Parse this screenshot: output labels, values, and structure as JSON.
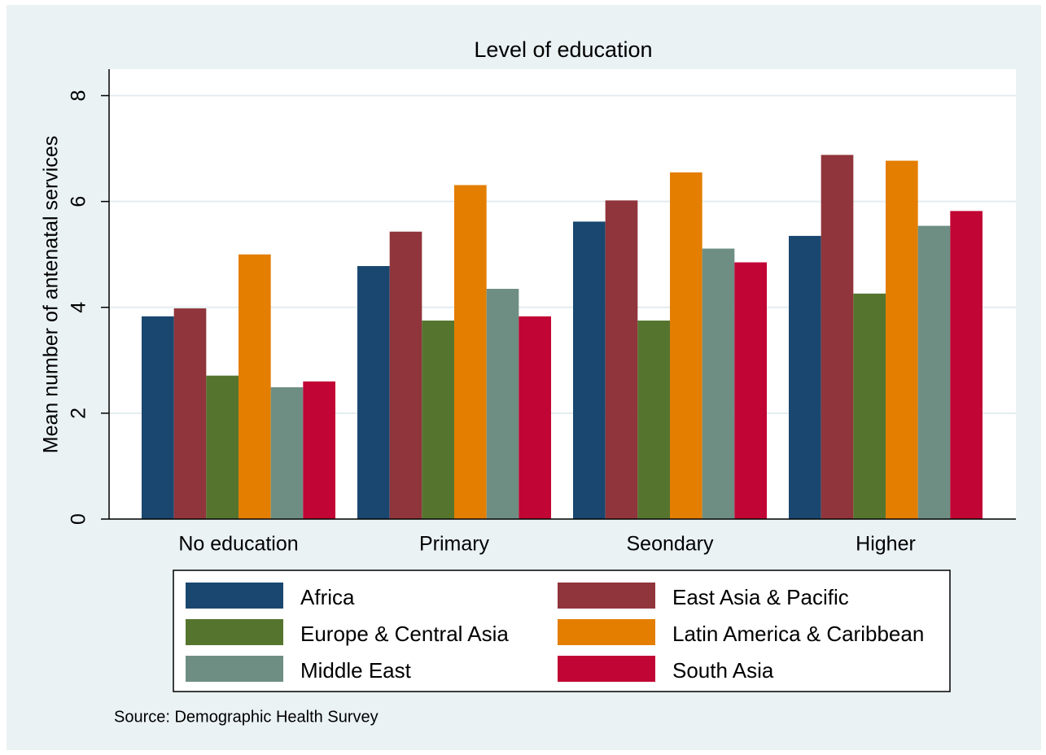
{
  "chart_data": {
    "type": "bar",
    "title": "Level of education",
    "y_label": "Mean number of antenatal services",
    "note": "Source: Demographic Health Survey",
    "categories": [
      "No education",
      "Primary",
      "Seondary",
      "Higher"
    ],
    "series": [
      {
        "name": "Africa",
        "color": "#1a476f",
        "values": [
          3.83,
          4.78,
          5.62,
          5.35
        ]
      },
      {
        "name": "East Asia & Pacific",
        "color": "#90353b",
        "values": [
          3.98,
          5.43,
          6.02,
          6.88
        ]
      },
      {
        "name": "Europe & Central Asia",
        "color": "#55752f",
        "values": [
          2.71,
          3.75,
          3.75,
          4.26
        ]
      },
      {
        "name": "Latin America & Caribbean",
        "color": "#e37e00",
        "values": [
          5.0,
          6.31,
          6.55,
          6.77
        ]
      },
      {
        "name": "Middle East",
        "color": "#6e8e84",
        "values": [
          2.49,
          4.35,
          5.11,
          5.54
        ]
      },
      {
        "name": "South Asia",
        "color": "#c10534",
        "values": [
          2.6,
          3.83,
          4.85,
          5.82
        ]
      }
    ],
    "ylim": [
      0,
      8.5
    ],
    "yticks": [
      0,
      2,
      4,
      6,
      8
    ],
    "grid": true,
    "legend": "bottom"
  }
}
